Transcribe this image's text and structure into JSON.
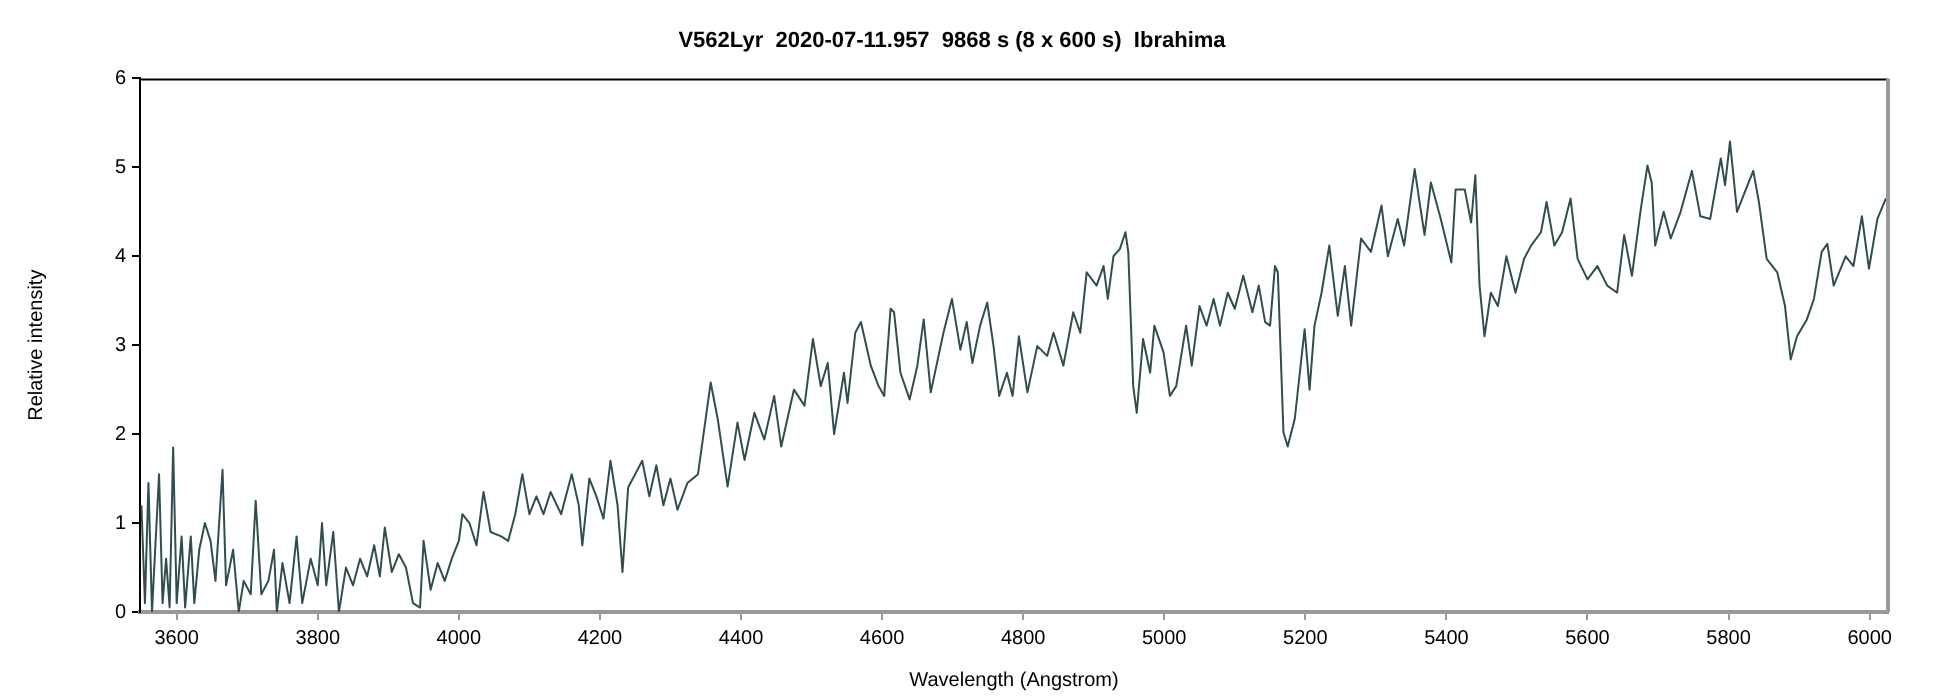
{
  "chart_data": {
    "type": "line",
    "title": "V562Lyr  2020-07-11.957  9868 s (8 x 600 s)  Ibrahima",
    "xlabel": "Wavelength (Angstrom)",
    "ylabel": "Relative intensity",
    "xlim": [
      3548,
      6026
    ],
    "xticks": [
      3600,
      3800,
      4000,
      4200,
      4400,
      4600,
      4800,
      5000,
      5200,
      5400,
      5600,
      5800,
      6000
    ],
    "ylim": [
      0,
      6
    ],
    "yticks": [
      0,
      1,
      2,
      3,
      4,
      5,
      6
    ],
    "grid": false,
    "legend": false,
    "series": [
      {
        "color": "#2f4f4f",
        "x": [
          3550,
          3555,
          3560,
          3565,
          3575,
          3580,
          3585,
          3590,
          3595,
          3600,
          3607,
          3612,
          3620,
          3625,
          3632,
          3640,
          3648,
          3655,
          3665,
          3670,
          3680,
          3688,
          3695,
          3705,
          3712,
          3720,
          3730,
          3738,
          3742,
          3750,
          3760,
          3770,
          3778,
          3790,
          3800,
          3806,
          3812,
          3822,
          3830,
          3840,
          3850,
          3860,
          3870,
          3880,
          3888,
          3895,
          3905,
          3915,
          3925,
          3935,
          3945,
          3950,
          3960,
          3970,
          3980,
          3990,
          4000,
          4005,
          4015,
          4025,
          4035,
          4045,
          4060,
          4070,
          4080,
          4090,
          4100,
          4110,
          4120,
          4130,
          4145,
          4160,
          4170,
          4175,
          4185,
          4195,
          4205,
          4215,
          4225,
          4232,
          4240,
          4250,
          4260,
          4270,
          4280,
          4290,
          4300,
          4310,
          4324,
          4339,
          4357,
          4367,
          4381,
          4395,
          4405,
          4419,
          4433,
          4447,
          4457,
          4475,
          4490,
          4502,
          4513,
          4523,
          4532,
          4546,
          4551,
          4562,
          4570,
          4584,
          4595,
          4603,
          4612,
          4617,
          4626,
          4639,
          4650,
          4659,
          4669,
          4687,
          4699,
          4711,
          4720,
          4728,
          4739,
          4749,
          4758,
          4766,
          4777,
          4785,
          4794,
          4806,
          4820,
          4834,
          4843,
          4857,
          4871,
          4881,
          4890,
          4904,
          4914,
          4920,
          4928,
          4937,
          4945,
          4949,
          4956,
          4961,
          4970,
          4980,
          4986,
          4999,
          5008,
          5017,
          5031,
          5039,
          5050,
          5060,
          5070,
          5079,
          5090,
          5100,
          5112,
          5125,
          5134,
          5143,
          5150,
          5157,
          5161,
          5169,
          5175,
          5185,
          5199,
          5206,
          5213,
          5223,
          5234,
          5246,
          5256,
          5265,
          5279,
          5293,
          5308,
          5317,
          5331,
          5340,
          5355,
          5364,
          5369,
          5378,
          5392,
          5407,
          5413,
          5426,
          5435,
          5441,
          5447,
          5454,
          5463,
          5473,
          5485,
          5498,
          5510,
          5520,
          5534,
          5542,
          5553,
          5564,
          5576,
          5586,
          5600,
          5614,
          5628,
          5642,
          5652,
          5663,
          5675,
          5685,
          5691,
          5696,
          5708,
          5718,
          5732,
          5748,
          5760,
          5774,
          5789,
          5795,
          5802,
          5812,
          5823,
          5835,
          5843,
          5854,
          5869,
          5880,
          5888,
          5897,
          5911,
          5921,
          5932,
          5940,
          5949,
          5966,
          5977,
          5989,
          5999,
          6011,
          6023
        ],
        "values": [
          1.2,
          0.1,
          1.45,
          0.0,
          1.55,
          0.1,
          0.6,
          0.05,
          1.85,
          0.1,
          0.85,
          0.05,
          0.85,
          0.1,
          0.7,
          1.0,
          0.8,
          0.35,
          1.6,
          0.3,
          0.7,
          0.0,
          0.35,
          0.2,
          1.25,
          0.2,
          0.35,
          0.7,
          0.0,
          0.55,
          0.1,
          0.85,
          0.1,
          0.6,
          0.3,
          1.0,
          0.3,
          0.9,
          0.0,
          0.5,
          0.3,
          0.6,
          0.4,
          0.75,
          0.4,
          0.95,
          0.45,
          0.65,
          0.5,
          0.1,
          0.05,
          0.8,
          0.25,
          0.55,
          0.35,
          0.6,
          0.8,
          1.1,
          1.0,
          0.75,
          1.35,
          0.9,
          0.85,
          0.8,
          1.1,
          1.55,
          1.1,
          1.3,
          1.1,
          1.35,
          1.1,
          1.55,
          1.2,
          0.75,
          1.5,
          1.3,
          1.05,
          1.7,
          1.2,
          0.45,
          1.4,
          1.55,
          1.7,
          1.3,
          1.65,
          1.2,
          1.5,
          1.15,
          1.45,
          1.55,
          2.58,
          2.17,
          1.41,
          2.13,
          1.71,
          2.24,
          1.94,
          2.43,
          1.86,
          2.5,
          2.32,
          3.07,
          2.54,
          2.8,
          2.0,
          2.69,
          2.35,
          3.14,
          3.26,
          2.77,
          2.54,
          2.43,
          3.41,
          3.37,
          2.69,
          2.39,
          2.77,
          3.29,
          2.47,
          3.14,
          3.52,
          2.95,
          3.26,
          2.8,
          3.22,
          3.48,
          2.99,
          2.43,
          2.69,
          2.43,
          3.1,
          2.47,
          2.99,
          2.88,
          3.14,
          2.77,
          3.37,
          3.14,
          3.82,
          3.67,
          3.89,
          3.52,
          4.0,
          4.08,
          4.27,
          4.05,
          2.54,
          2.24,
          3.07,
          2.69,
          3.22,
          2.92,
          2.43,
          2.54,
          3.22,
          2.77,
          3.44,
          3.22,
          3.52,
          3.22,
          3.59,
          3.41,
          3.78,
          3.37,
          3.67,
          3.26,
          3.22,
          3.89,
          3.82,
          2.02,
          1.86,
          2.17,
          3.18,
          2.5,
          3.22,
          3.59,
          4.12,
          3.33,
          3.89,
          3.22,
          4.2,
          4.05,
          4.57,
          4.0,
          4.42,
          4.12,
          4.98,
          4.5,
          4.24,
          4.83,
          4.42,
          3.93,
          4.75,
          4.75,
          4.38,
          4.91,
          3.67,
          3.1,
          3.59,
          3.44,
          4.0,
          3.59,
          3.97,
          4.12,
          4.27,
          4.61,
          4.12,
          4.27,
          4.65,
          3.97,
          3.74,
          3.89,
          3.67,
          3.59,
          4.24,
          3.78,
          4.5,
          5.02,
          4.83,
          4.12,
          4.5,
          4.2,
          4.5,
          4.96,
          4.45,
          4.42,
          5.1,
          4.8,
          5.29,
          4.5,
          4.72,
          4.96,
          4.61,
          3.97,
          3.82,
          3.44,
          2.84,
          3.1,
          3.29,
          3.52,
          4.05,
          4.14,
          3.67,
          4.0,
          3.89,
          4.45,
          3.86,
          4.42,
          4.65
        ]
      }
    ]
  }
}
